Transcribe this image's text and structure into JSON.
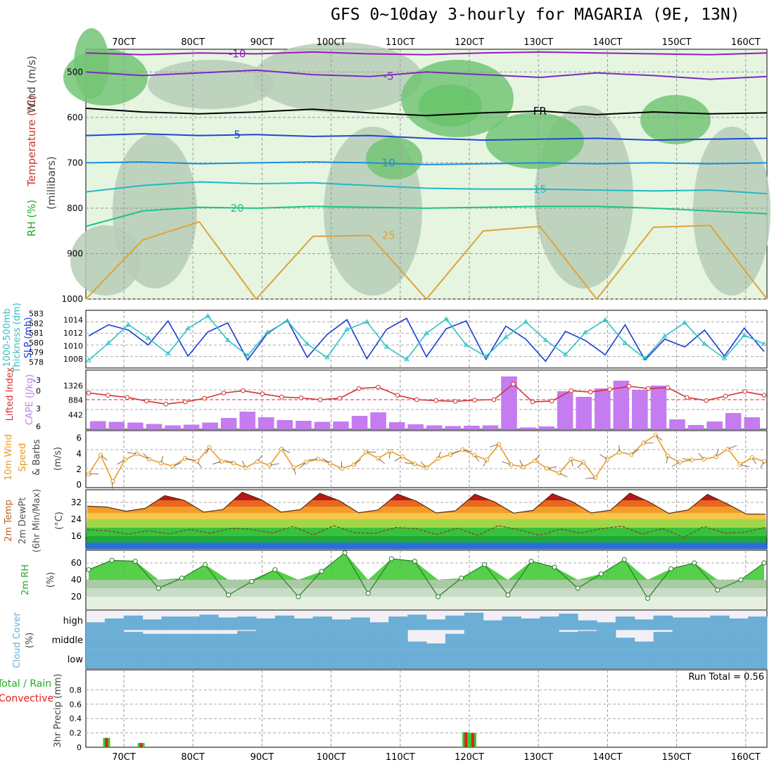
{
  "title": "GFS 0~10day 3-hourly for MAGARIA (9E, 13N)",
  "chart_data": [
    {
      "type": "heatmap",
      "panel": "upper-air",
      "ylabel_parts": [
        "RH (%)",
        "Temperature (°C)",
        "Wind (m/s)",
        "(millibars)"
      ],
      "y_axis": {
        "scale": "pressure",
        "ticks": [
          500,
          600,
          700,
          800,
          900,
          1000
        ],
        "range": [
          1000,
          450
        ]
      },
      "x_ticks": [
        "70CT",
        "80CT",
        "90CT",
        "100CT",
        "110CT",
        "120CT",
        "130CT",
        "140CT",
        "150CT",
        "160CT"
      ],
      "isotherms": [
        {
          "label": "-10",
          "color": "#9a1bbd",
          "p": [
            458,
            462,
            458,
            460,
            456,
            460,
            462,
            458,
            456,
            458,
            460,
            462,
            458
          ]
        },
        {
          "label": "-5",
          "color": "#7a2bc0",
          "p": [
            500,
            508,
            502,
            496,
            506,
            510,
            500,
            506,
            512,
            502,
            508,
            516,
            510
          ]
        },
        {
          "label": "FR",
          "color": "#000000",
          "p": [
            580,
            588,
            592,
            588,
            582,
            590,
            596,
            590,
            586,
            594,
            588,
            592,
            590
          ]
        },
        {
          "label": "5",
          "color": "#1c47d6",
          "p": [
            640,
            636,
            640,
            638,
            642,
            640,
            646,
            650,
            648,
            646,
            650,
            648,
            646
          ]
        },
        {
          "label": "10",
          "color": "#1a8fe0",
          "p": [
            700,
            698,
            702,
            700,
            698,
            700,
            704,
            702,
            700,
            702,
            700,
            702,
            700
          ]
        },
        {
          "label": "15",
          "color": "#22b8c4",
          "p": [
            764,
            750,
            742,
            746,
            744,
            750,
            756,
            758,
            758,
            760,
            762,
            760,
            768
          ]
        },
        {
          "label": "20",
          "color": "#1fc28a",
          "p": [
            840,
            806,
            798,
            800,
            796,
            798,
            800,
            798,
            796,
            796,
            800,
            806,
            812
          ]
        },
        {
          "label": "25",
          "color": "#e0a23a",
          "p": [
            1000,
            870,
            830,
            1000,
            862,
            860,
            1000,
            850,
            840,
            1000,
            842,
            838,
            1000
          ]
        }
      ]
    },
    {
      "type": "line",
      "panel": "slp-thickness",
      "ylabel_parts": [
        "1000-500mb",
        "Thickness (dm)",
        "SLP (mb)"
      ],
      "ticks_left": [
        583,
        582,
        581,
        580,
        579,
        578
      ],
      "ticks_right": [
        1014,
        1012,
        1010,
        1008
      ],
      "series": [
        {
          "color": "#1a3bd1",
          "values": [
            1011.5,
            1013.2,
            1012.4,
            1010.1,
            1013.8,
            1008.4,
            1012.1,
            1013.5,
            1007.8,
            1011.9,
            1013.9,
            1008.2,
            1011.7,
            1014.0,
            1008.0,
            1012.5,
            1014.2,
            1008.3,
            1012.6,
            1013.8,
            1007.9,
            1013.0,
            1011.0,
            1007.6,
            1012.2,
            1010.8,
            1008.6,
            1013.2,
            1007.8,
            1011.0,
            1009.8,
            1012.4,
            1008.4,
            1012.7,
            1009.1
          ]
        },
        {
          "color": "#2ec2c7",
          "marker": "triangle",
          "values": [
            578.3,
            580.1,
            582.0,
            580.6,
            579.0,
            581.6,
            582.9,
            580.4,
            578.8,
            581.2,
            582.4,
            580.0,
            578.6,
            581.5,
            582.3,
            579.7,
            578.4,
            581.1,
            582.6,
            579.9,
            578.7,
            580.7,
            582.3,
            580.4,
            578.9,
            581.2,
            582.5,
            580.1,
            578.5,
            580.8,
            582.2,
            580.0,
            578.5,
            580.9,
            580.0
          ]
        }
      ]
    },
    {
      "type": "bar",
      "panel": "cape-lifted-index",
      "ylabel_parts": [
        "Lifted Index",
        "CAPE (J/kg)"
      ],
      "ticks_left": [
        -3,
        0,
        3,
        6
      ],
      "ticks_right": [
        1326,
        884,
        442
      ],
      "series": [
        {
          "name": "CAPE",
          "color": "#c47cf0",
          "values": [
            230,
            210,
            190,
            150,
            110,
            130,
            190,
            320,
            500,
            340,
            260,
            240,
            210,
            220,
            380,
            480,
            200,
            140,
            110,
            90,
            100,
            110,
            1500,
            50,
            80,
            1080,
            920,
            1160,
            1380,
            1120,
            1240,
            280,
            120,
            220,
            460,
            340
          ]
        },
        {
          "name": "Lifted Index",
          "color": "#d63232",
          "values": [
            -1.5,
            -1.0,
            -0.5,
            0.3,
            1.0,
            0.5,
            -0.3,
            -1.5,
            -2.0,
            -1.3,
            -0.6,
            -0.4,
            0.0,
            -0.3,
            -2.5,
            -2.8,
            -1.0,
            0.0,
            0.2,
            0.4,
            0.1,
            0.0,
            -3.5,
            0.5,
            0.3,
            -2.0,
            -1.7,
            -2.3,
            -3.0,
            -2.5,
            -2.7,
            -0.5,
            0.2,
            -0.8,
            -1.8,
            -1.0
          ]
        }
      ]
    },
    {
      "type": "line",
      "panel": "10m-wind",
      "ylabel_parts": [
        "10m Wind",
        "Speed",
        "& Barbs",
        "(m/s)"
      ],
      "ticks": [
        0,
        2,
        4,
        6
      ],
      "series": [
        {
          "color": "#e89b24",
          "values": [
            1.4,
            3.8,
            0.4,
            3.2,
            4.0,
            3.3,
            2.8,
            2.4,
            3.4,
            3.0,
            4.8,
            3.0,
            2.8,
            2.2,
            3.0,
            2.5,
            4.6,
            2.2,
            2.9,
            3.3,
            2.8,
            2.1,
            2.6,
            4.2,
            3.4,
            4.3,
            3.6,
            2.7,
            2.2,
            3.4,
            3.9,
            4.5,
            3.8,
            3.2,
            5.2,
            2.6,
            2.3,
            3.1,
            2.1,
            1.5,
            3.3,
            2.9,
            0.9,
            3.3,
            4.2,
            3.9,
            5.4,
            6.4,
            3.7,
            2.9,
            3.2,
            3.3,
            3.6,
            4.6,
            2.6,
            3.5,
            3.0
          ]
        }
      ]
    },
    {
      "type": "area",
      "panel": "2m-temp",
      "ylabel_parts": [
        "2m Temp",
        "2m DewPt",
        "(6hr Min/Max)",
        "(°C)"
      ],
      "ticks": [
        16,
        24,
        32
      ],
      "series": [
        {
          "name": "2m Temp",
          "color": "#e05a1e",
          "values": [
            30.2,
            29.8,
            27.8,
            29.2,
            35.2,
            33.0,
            27.4,
            28.6,
            36.8,
            33.2,
            27.4,
            28.6,
            36.3,
            32.8,
            27.1,
            28.4,
            36.0,
            32.5,
            27.0,
            28.0,
            35.9,
            32.3,
            26.9,
            28.2,
            36.1,
            32.5,
            27.0,
            28.3,
            36.4,
            32.2,
            26.8,
            28.4,
            35.8,
            31.4,
            26.5,
            26.4
          ]
        },
        {
          "name": "2m DewPt",
          "color": "#8a4a2a",
          "values": [
            19.0,
            18.5,
            17.0,
            18.6,
            17.1,
            19.2,
            17.4,
            19.8,
            19.2,
            17.5,
            20.6,
            16.6,
            21.0,
            17.6,
            17.3,
            20.1,
            19.6,
            16.8,
            19.8,
            16.4,
            21.0,
            19.0,
            16.4,
            19.4,
            17.4,
            19.5,
            20.8,
            17.0,
            19.6,
            15.4,
            20.6,
            17.5,
            17.8,
            20.2
          ]
        }
      ]
    },
    {
      "type": "area",
      "panel": "2m-rh",
      "ylabel_parts": [
        "2m RH",
        "(%)"
      ],
      "ticks": [
        20,
        40,
        60
      ],
      "series": [
        {
          "color": "#38c82a",
          "values": [
            52,
            63,
            62,
            30,
            42,
            58,
            22,
            38,
            52,
            20,
            50,
            72,
            24,
            65,
            62,
            20,
            42,
            58,
            22,
            62,
            55,
            30,
            47,
            64,
            18,
            53,
            60,
            28,
            40,
            60
          ]
        }
      ]
    },
    {
      "type": "bar",
      "panel": "cloud-cover",
      "ylabel_parts": [
        "Cloud Cover",
        "(%)"
      ],
      "levels": [
        "high",
        "middle",
        "low"
      ],
      "series": [
        {
          "name": "high",
          "color": "#6baed6",
          "values": [
            40,
            60,
            75,
            55,
            70,
            70,
            80,
            65,
            70,
            60,
            75,
            60,
            70,
            55,
            65,
            40,
            70,
            80,
            55,
            75,
            90,
            50,
            70,
            60,
            70,
            85,
            50,
            40,
            70,
            55,
            75,
            65,
            65,
            75,
            60,
            70
          ]
        },
        {
          "name": "middle",
          "color": "#6baed6",
          "values": [
            100,
            100,
            90,
            80,
            80,
            80,
            80,
            80,
            95,
            100,
            100,
            100,
            100,
            100,
            100,
            100,
            100,
            40,
            30,
            80,
            100,
            100,
            100,
            100,
            100,
            90,
            95,
            100,
            60,
            40,
            90,
            100,
            100,
            100,
            100,
            100
          ]
        },
        {
          "name": "low",
          "color": "#6baed6",
          "values": [
            100,
            100,
            100,
            100,
            100,
            100,
            100,
            100,
            100,
            100,
            100,
            100,
            100,
            100,
            100,
            100,
            100,
            100,
            100,
            100,
            100,
            100,
            100,
            100,
            100,
            100,
            100,
            100,
            100,
            100,
            100,
            100,
            100,
            100,
            100,
            100
          ]
        }
      ]
    },
    {
      "type": "bar",
      "panel": "precip",
      "ylabel_parts": [
        "Total / Rain",
        "Convective",
        "3hr Precip (mm)"
      ],
      "ticks": [
        0,
        0.2,
        0.4,
        0.6,
        0.8
      ],
      "ylim": [
        0,
        1.0
      ],
      "annotation": "Run Total = 0.56",
      "bars": [
        {
          "x": 67.5,
          "total": 0.13
        },
        {
          "x": 72.5,
          "total": 0.06
        },
        {
          "x": 119.5,
          "total": 0.21
        },
        {
          "x": 120.5,
          "total": 0.2
        }
      ]
    }
  ],
  "colors": {
    "rh_light": "#e5f5e0",
    "rh_mid": "#b7cdb7",
    "rh_green": "#74c476",
    "rh_bright": "#22c82a"
  }
}
